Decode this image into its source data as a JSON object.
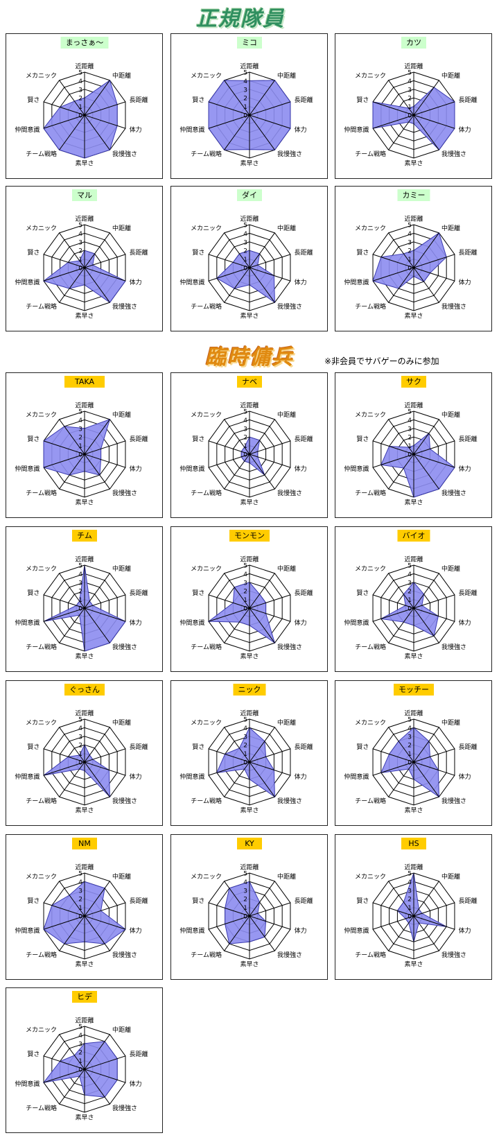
{
  "sections": [
    {
      "title": "正規隊員"
    },
    {
      "title": "臨時傭兵",
      "note": "※非会員でサバゲーのみに参加"
    }
  ],
  "chart_data": [
    {
      "type": "radar",
      "title": "まっさぁ～",
      "title_color": "#ccffcc",
      "color": "#8c8cf0",
      "categories": [
        "近距離",
        "中距離",
        "長距離",
        "体力",
        "我慢強さ",
        "素早さ",
        "チーム戦略",
        "仲間意識",
        "賢さ",
        "メカニック"
      ],
      "values": [
        2,
        5,
        4,
        4,
        5,
        5,
        5,
        5,
        3,
        2
      ],
      "ylim": [
        0,
        5
      ],
      "yticks": [
        0,
        1,
        2,
        3,
        4,
        5
      ]
    },
    {
      "type": "radar",
      "title": "ミコ",
      "title_color": "#ccffcc",
      "color": "#8c8cf0",
      "categories": [
        "近距離",
        "中距離",
        "長距離",
        "体力",
        "我慢強さ",
        "素早さ",
        "チーム戦略",
        "仲間意識",
        "賢さ",
        "メカニック"
      ],
      "values": [
        4,
        5,
        5,
        5,
        5,
        4,
        5,
        5,
        5,
        5
      ],
      "ylim": [
        0,
        5
      ],
      "yticks": [
        0,
        1,
        2,
        3,
        4,
        5
      ]
    },
    {
      "type": "radar",
      "title": "カツ",
      "title_color": "#ccffcc",
      "color": "#8c8cf0",
      "categories": [
        "近距離",
        "中距離",
        "長距離",
        "体力",
        "我慢強さ",
        "素早さ",
        "チーム戦略",
        "仲間意識",
        "賢さ",
        "メカニック"
      ],
      "values": [
        1,
        4,
        5,
        5,
        5,
        1,
        1,
        5,
        5,
        1
      ],
      "ylim": [
        0,
        5
      ],
      "yticks": [
        0,
        1,
        2,
        3,
        4,
        5
      ]
    },
    {
      "type": "radar",
      "title": "マル",
      "title_color": "#ccffcc",
      "color": "#8c8cf0",
      "categories": [
        "近距離",
        "中距離",
        "長距離",
        "体力",
        "我慢強さ",
        "素早さ",
        "チーム戦略",
        "仲間意識",
        "賢さ",
        "メカニック"
      ],
      "values": [
        2,
        2,
        1,
        5,
        5,
        2,
        3,
        5,
        2,
        1
      ],
      "ylim": [
        0,
        5
      ],
      "yticks": [
        0,
        1,
        2,
        3,
        4,
        5
      ]
    },
    {
      "type": "radar",
      "title": "ダイ",
      "title_color": "#ccffcc",
      "color": "#8c8cf0",
      "categories": [
        "近距離",
        "中距離",
        "長距離",
        "体力",
        "我慢強さ",
        "素早さ",
        "チーム戦略",
        "仲間意識",
        "賢さ",
        "メカニック"
      ],
      "values": [
        2,
        2,
        1,
        3,
        5,
        2,
        3,
        4,
        2,
        2
      ],
      "ylim": [
        0,
        5
      ],
      "yticks": [
        0,
        1,
        2,
        3,
        4,
        5
      ]
    },
    {
      "type": "radar",
      "title": "カミー",
      "title_color": "#ccffcc",
      "color": "#8c8cf0",
      "categories": [
        "近距離",
        "中距離",
        "長距離",
        "体力",
        "我慢強さ",
        "素早さ",
        "チーム戦略",
        "仲間意識",
        "賢さ",
        "メカニック"
      ],
      "values": [
        2,
        5,
        4,
        2,
        2,
        1,
        3,
        5,
        4,
        2
      ],
      "ylim": [
        0,
        5
      ],
      "yticks": [
        0,
        1,
        2,
        3,
        4,
        5
      ]
    },
    {
      "type": "radar",
      "title": "TAKA",
      "title_color": "#ffcc00",
      "color": "#8c8cf0",
      "categories": [
        "近距離",
        "中距離",
        "長距離",
        "体力",
        "我慢強さ",
        "素早さ",
        "チーム戦略",
        "仲間意識",
        "賢さ",
        "メカニック"
      ],
      "values": [
        3,
        5,
        2,
        2,
        3,
        2,
        3,
        5,
        5,
        4
      ],
      "ylim": [
        0,
        5
      ],
      "yticks": [
        0,
        1,
        2,
        3,
        4,
        5
      ]
    },
    {
      "type": "radar",
      "title": "ナベ",
      "title_color": "#ffcc00",
      "color": "#8c8cf0",
      "categories": [
        "近距離",
        "中距離",
        "長距離",
        "体力",
        "我慢強さ",
        "素早さ",
        "チーム戦略",
        "仲間意識",
        "賢さ",
        "メカニック"
      ],
      "values": [
        2,
        2,
        1,
        1,
        3,
        1,
        1,
        1,
        1,
        1
      ],
      "ylim": [
        0,
        5
      ],
      "yticks": [
        0,
        1,
        2,
        3,
        4,
        5
      ]
    },
    {
      "type": "radar",
      "title": "サク",
      "title_color": "#ffcc00",
      "color": "#8c8cf0",
      "categories": [
        "近距離",
        "中距離",
        "長距離",
        "体力",
        "我慢強さ",
        "素早さ",
        "チーム戦略",
        "仲間意識",
        "賢さ",
        "メカニック"
      ],
      "values": [
        1,
        3,
        2,
        5,
        5,
        5,
        2,
        4,
        3,
        1
      ],
      "ylim": [
        0,
        5
      ],
      "yticks": [
        0,
        1,
        2,
        3,
        4,
        5
      ]
    },
    {
      "type": "radar",
      "title": "チム",
      "title_color": "#ffcc00",
      "color": "#8c8cf0",
      "categories": [
        "近距離",
        "中距離",
        "長距離",
        "体力",
        "我慢強さ",
        "素早さ",
        "チーム戦略",
        "仲間意識",
        "賢さ",
        "メカニック"
      ],
      "values": [
        5,
        1,
        1,
        5,
        5,
        5,
        1,
        5,
        1,
        1
      ],
      "ylim": [
        0,
        5
      ],
      "yticks": [
        0,
        1,
        2,
        3,
        4,
        5
      ]
    },
    {
      "type": "radar",
      "title": "モンモン",
      "title_color": "#ffcc00",
      "color": "#8c8cf0",
      "categories": [
        "近距離",
        "中距離",
        "長距離",
        "体力",
        "我慢強さ",
        "素早さ",
        "チーム戦略",
        "仲間意識",
        "賢さ",
        "メカニック"
      ],
      "values": [
        3,
        2,
        2,
        2,
        5,
        2,
        2,
        5,
        2,
        3
      ],
      "ylim": [
        0,
        5
      ],
      "yticks": [
        0,
        1,
        2,
        3,
        4,
        5
      ]
    },
    {
      "type": "radar",
      "title": "バイオ",
      "title_color": "#ffcc00",
      "color": "#8c8cf0",
      "categories": [
        "近距離",
        "中距離",
        "長距離",
        "体力",
        "我慢強さ",
        "素早さ",
        "チーム戦略",
        "仲間意識",
        "賢さ",
        "メカニック"
      ],
      "values": [
        3,
        2,
        1,
        3,
        4,
        2,
        2,
        4,
        1,
        2
      ],
      "ylim": [
        0,
        5
      ],
      "yticks": [
        0,
        1,
        2,
        3,
        4,
        5
      ]
    },
    {
      "type": "radar",
      "title": "ぐっさん",
      "title_color": "#ffcc00",
      "color": "#8c8cf0",
      "categories": [
        "近距離",
        "中距離",
        "長距離",
        "体力",
        "我慢強さ",
        "素早さ",
        "チーム戦略",
        "仲間意識",
        "賢さ",
        "メカニック"
      ],
      "values": [
        2,
        1,
        1,
        3,
        5,
        1,
        1,
        5,
        2,
        1
      ],
      "ylim": [
        0,
        5
      ],
      "yticks": [
        0,
        1,
        2,
        3,
        4,
        5
      ]
    },
    {
      "type": "radar",
      "title": "ニック",
      "title_color": "#ffcc00",
      "color": "#8c8cf0",
      "categories": [
        "近距離",
        "中距離",
        "長距離",
        "体力",
        "我慢強さ",
        "素早さ",
        "チーム戦略",
        "仲間意識",
        "賢さ",
        "メカニック"
      ],
      "values": [
        4,
        3,
        2,
        3,
        5,
        2,
        1,
        4,
        3,
        2
      ],
      "ylim": [
        0,
        5
      ],
      "yticks": [
        0,
        1,
        2,
        3,
        4,
        5
      ]
    },
    {
      "type": "radar",
      "title": "モッチー",
      "title_color": "#ffcc00",
      "color": "#8c8cf0",
      "categories": [
        "近距離",
        "中距離",
        "長距離",
        "体力",
        "我慢強さ",
        "素早さ",
        "チーム戦略",
        "仲間意識",
        "賢さ",
        "メカニック"
      ],
      "values": [
        4,
        3,
        2,
        3,
        5,
        2,
        1,
        4,
        3,
        3
      ],
      "ylim": [
        0,
        5
      ],
      "yticks": [
        0,
        1,
        2,
        3,
        4,
        5
      ]
    },
    {
      "type": "radar",
      "title": "NM",
      "title_color": "#ffcc00",
      "color": "#8c8cf0",
      "categories": [
        "近距離",
        "中距離",
        "長距離",
        "体力",
        "我慢強さ",
        "素早さ",
        "チーム戦略",
        "仲間意識",
        "賢さ",
        "メカニック"
      ],
      "values": [
        4,
        4,
        2,
        5,
        4,
        3,
        4,
        5,
        4,
        3
      ],
      "ylim": [
        0,
        5
      ],
      "yticks": [
        0,
        1,
        2,
        3,
        4,
        5
      ]
    },
    {
      "type": "radar",
      "title": "KY",
      "title_color": "#ffcc00",
      "color": "#8c8cf0",
      "categories": [
        "近距離",
        "中距離",
        "長距離",
        "体力",
        "我慢強さ",
        "素早さ",
        "チーム戦略",
        "仲間意識",
        "賢さ",
        "メカニック"
      ],
      "values": [
        4,
        2,
        1,
        2,
        3,
        3,
        4,
        3,
        3,
        4
      ],
      "ylim": [
        0,
        5
      ],
      "yticks": [
        0,
        1,
        2,
        3,
        4,
        5
      ]
    },
    {
      "type": "radar",
      "title": "HS",
      "title_color": "#ffcc00",
      "color": "#8c8cf0",
      "categories": [
        "近距離",
        "中距離",
        "長距離",
        "体力",
        "我慢強さ",
        "素早さ",
        "チーム戦略",
        "仲間意識",
        "賢さ",
        "メカニック"
      ],
      "values": [
        5,
        1,
        1,
        4,
        1,
        3,
        1,
        1,
        2,
        2
      ],
      "ylim": [
        0,
        5
      ],
      "yticks": [
        0,
        1,
        2,
        3,
        4,
        5
      ]
    },
    {
      "type": "radar",
      "title": "ヒデ",
      "title_color": "#ffcc00",
      "color": "#8c8cf0",
      "categories": [
        "近距離",
        "中距離",
        "長距離",
        "体力",
        "我慢強さ",
        "素早さ",
        "チーム戦略",
        "仲間意識",
        "賢さ",
        "メカニック"
      ],
      "values": [
        3,
        4,
        4,
        4,
        4,
        3,
        1,
        5,
        3,
        2
      ],
      "ylim": [
        0,
        5
      ],
      "yticks": [
        0,
        1,
        2,
        3,
        4,
        5
      ]
    }
  ]
}
